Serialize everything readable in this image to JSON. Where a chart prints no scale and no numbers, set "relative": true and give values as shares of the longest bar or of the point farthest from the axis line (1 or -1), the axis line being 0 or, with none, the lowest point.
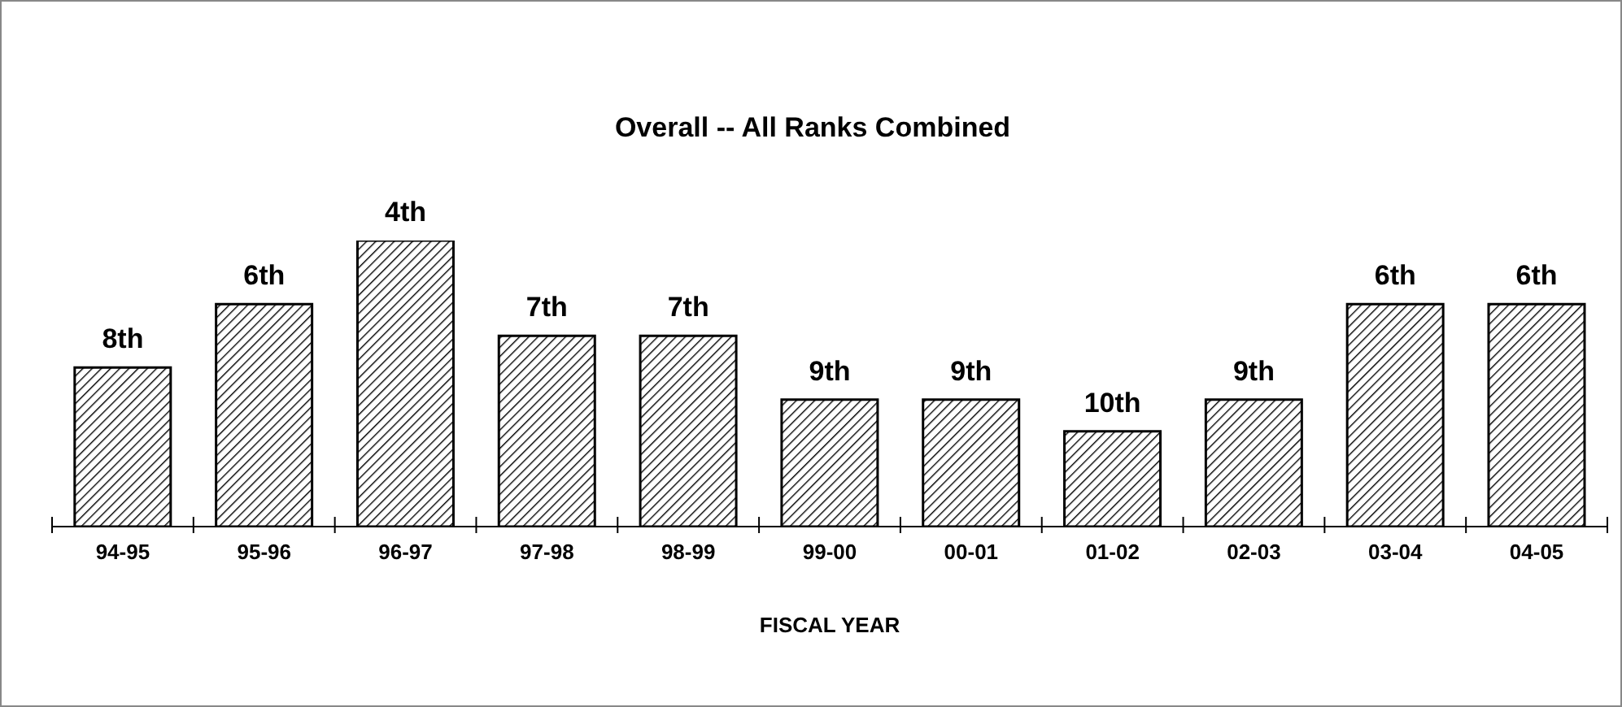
{
  "chart_data": {
    "type": "bar",
    "title": "Overall -- All Ranks Combined",
    "xlabel": "FISCAL YEAR",
    "relative": true,
    "categories": [
      "94-95",
      "95-96",
      "96-97",
      "97-98",
      "98-99",
      "99-00",
      "00-01",
      "01-02",
      "02-03",
      "03-04",
      "04-05"
    ],
    "values": [
      0.556,
      0.778,
      1,
      0.667,
      0.667,
      0.444,
      0.444,
      0.333,
      0.444,
      0.778,
      0.778
    ],
    "annotations": [
      {
        "text": "8th",
        "x": "94-95",
        "y": 0.556
      },
      {
        "text": "6th",
        "x": "95-96",
        "y": 0.778
      },
      {
        "text": "4th",
        "x": "96-97",
        "y": 1
      },
      {
        "text": "7th",
        "x": "97-98",
        "y": 0.667
      },
      {
        "text": "7th",
        "x": "98-99",
        "y": 0.667
      },
      {
        "text": "9th",
        "x": "99-00",
        "y": 0.444
      },
      {
        "text": "9th",
        "x": "00-01",
        "y": 0.444
      },
      {
        "text": "10th",
        "x": "01-02",
        "y": 0.333
      },
      {
        "text": "9th",
        "x": "02-03",
        "y": 0.444
      },
      {
        "text": "6th",
        "x": "03-04",
        "y": 0.778
      },
      {
        "text": "6th",
        "x": "04-05",
        "y": 0.778
      }
    ],
    "color": "#000000"
  }
}
